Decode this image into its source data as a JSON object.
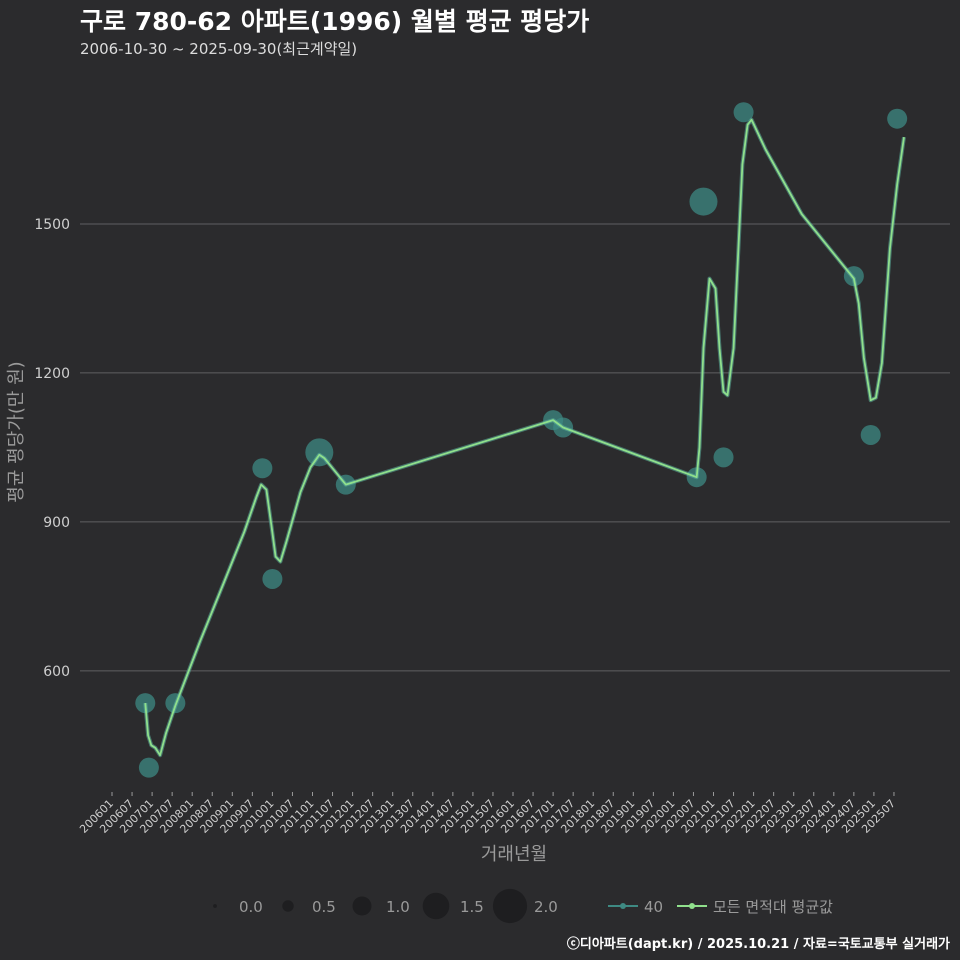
{
  "title": "구로 780-62 아파트(1996) 월별 평균 평당가",
  "subtitle": "2006-10-30 ~ 2025-09-30(최근계약일)",
  "credit": "ⓒ디아파트(dapt.kr) / 2025.10.21 / 자료=국토교통부 실거래가",
  "colors": {
    "background": "#2b2b2d",
    "grid": "#5f5f62",
    "series40": "#3e8a83",
    "series40_line": "#5cb39e",
    "avg_line": "#90e08c"
  },
  "chart_data": {
    "type": "line",
    "title": "구로 780-62 아파트(1996) 월별 평균 평당가",
    "xlabel": "거래년월",
    "ylabel": "평균 평당가(만 원)",
    "ylim": [
      360,
      1800
    ],
    "yticks": [
      600,
      900,
      1200,
      1500
    ],
    "xlim": [
      2006.0,
      2025.9
    ],
    "xtick_labels": [
      "200601",
      "200607",
      "200701",
      "200707",
      "200801",
      "200807",
      "200901",
      "200907",
      "201001",
      "201007",
      "201101",
      "201107",
      "201201",
      "201207",
      "201301",
      "201307",
      "201401",
      "201407",
      "201501",
      "201507",
      "201601",
      "201607",
      "201701",
      "201707",
      "201801",
      "201807",
      "201901",
      "201907",
      "202001",
      "202007",
      "202101",
      "202107",
      "202201",
      "202207",
      "202301",
      "202307",
      "202401",
      "202407",
      "202501",
      "202507"
    ],
    "series": [
      {
        "name": "40",
        "kind": "scatter",
        "points": [
          {
            "x": 2006.83,
            "y": 535,
            "size": 1.0
          },
          {
            "x": 2006.92,
            "y": 405,
            "size": 1.0
          },
          {
            "x": 2007.58,
            "y": 535,
            "size": 1.0
          },
          {
            "x": 2009.75,
            "y": 1008,
            "size": 1.0
          },
          {
            "x": 2010.0,
            "y": 785,
            "size": 1.0
          },
          {
            "x": 2011.17,
            "y": 1040,
            "size": 1.5
          },
          {
            "x": 2011.83,
            "y": 975,
            "size": 1.0
          },
          {
            "x": 2017.0,
            "y": 1105,
            "size": 1.0
          },
          {
            "x": 2017.25,
            "y": 1090,
            "size": 1.0
          },
          {
            "x": 2020.58,
            "y": 990,
            "size": 1.0
          },
          {
            "x": 2020.75,
            "y": 1545,
            "size": 1.5
          },
          {
            "x": 2021.25,
            "y": 1030,
            "size": 1.0
          },
          {
            "x": 2021.75,
            "y": 1725,
            "size": 1.0
          },
          {
            "x": 2024.5,
            "y": 1395,
            "size": 1.0
          },
          {
            "x": 2024.92,
            "y": 1075,
            "size": 1.0
          },
          {
            "x": 2025.58,
            "y": 1712,
            "size": 1.0
          }
        ]
      },
      {
        "name": "모든 면적대 평균값",
        "kind": "line",
        "points": [
          {
            "x": 2006.83,
            "y": 535
          },
          {
            "x": 2006.9,
            "y": 470
          },
          {
            "x": 2006.98,
            "y": 450
          },
          {
            "x": 2007.08,
            "y": 445
          },
          {
            "x": 2007.2,
            "y": 430
          },
          {
            "x": 2007.35,
            "y": 475
          },
          {
            "x": 2007.58,
            "y": 530
          },
          {
            "x": 2008.2,
            "y": 660
          },
          {
            "x": 2008.8,
            "y": 780
          },
          {
            "x": 2009.3,
            "y": 880
          },
          {
            "x": 2009.6,
            "y": 950
          },
          {
            "x": 2009.72,
            "y": 975
          },
          {
            "x": 2009.85,
            "y": 965
          },
          {
            "x": 2009.98,
            "y": 890
          },
          {
            "x": 2010.08,
            "y": 830
          },
          {
            "x": 2010.2,
            "y": 820
          },
          {
            "x": 2010.35,
            "y": 860
          },
          {
            "x": 2010.7,
            "y": 960
          },
          {
            "x": 2010.95,
            "y": 1010
          },
          {
            "x": 2011.17,
            "y": 1035
          },
          {
            "x": 2011.3,
            "y": 1028
          },
          {
            "x": 2011.83,
            "y": 975
          },
          {
            "x": 2017.0,
            "y": 1105
          },
          {
            "x": 2017.25,
            "y": 1090
          },
          {
            "x": 2020.58,
            "y": 990
          },
          {
            "x": 2020.65,
            "y": 1050
          },
          {
            "x": 2020.75,
            "y": 1250
          },
          {
            "x": 2020.9,
            "y": 1390
          },
          {
            "x": 2021.05,
            "y": 1370
          },
          {
            "x": 2021.15,
            "y": 1250
          },
          {
            "x": 2021.25,
            "y": 1162
          },
          {
            "x": 2021.35,
            "y": 1155
          },
          {
            "x": 2021.5,
            "y": 1250
          },
          {
            "x": 2021.62,
            "y": 1450
          },
          {
            "x": 2021.72,
            "y": 1620
          },
          {
            "x": 2021.85,
            "y": 1700
          },
          {
            "x": 2021.95,
            "y": 1710
          },
          {
            "x": 2022.3,
            "y": 1650
          },
          {
            "x": 2023.2,
            "y": 1520
          },
          {
            "x": 2024.5,
            "y": 1390
          },
          {
            "x": 2024.62,
            "y": 1340
          },
          {
            "x": 2024.75,
            "y": 1230
          },
          {
            "x": 2024.92,
            "y": 1145
          },
          {
            "x": 2025.05,
            "y": 1150
          },
          {
            "x": 2025.2,
            "y": 1220
          },
          {
            "x": 2025.4,
            "y": 1450
          },
          {
            "x": 2025.58,
            "y": 1580
          },
          {
            "x": 2025.75,
            "y": 1675
          }
        ]
      }
    ],
    "legend": {
      "size_title": "",
      "size_values": [
        "0.0",
        "0.5",
        "1.0",
        "1.5",
        "2.0"
      ],
      "series_labels": [
        "40",
        "모든 면적대 평균값"
      ],
      "position": "bottom"
    }
  }
}
